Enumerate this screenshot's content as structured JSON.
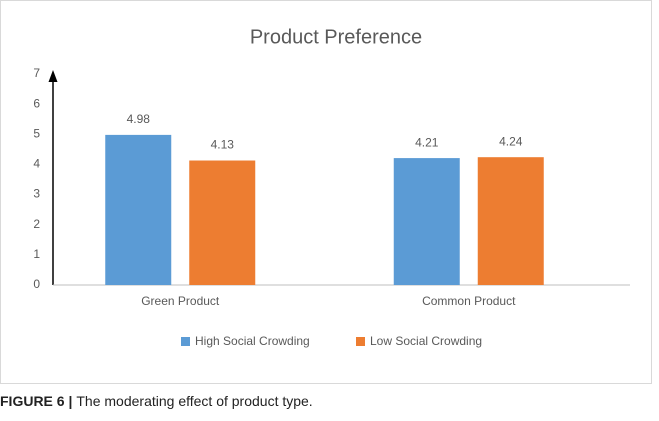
{
  "chart_data": {
    "type": "bar",
    "title": "Product Preference",
    "categories": [
      "Green Product",
      "Common Product"
    ],
    "series": [
      {
        "name": "High Social Crowding",
        "color": "#5b9bd5",
        "values": [
          4.98,
          4.21
        ]
      },
      {
        "name": "Low Social Crowding",
        "color": "#ed7d31",
        "values": [
          4.13,
          4.24
        ]
      }
    ],
    "ylim": [
      0,
      7
    ],
    "yticks": [
      0,
      1,
      2,
      3,
      4,
      5,
      6,
      7
    ],
    "grid": false,
    "legend": "bottom"
  },
  "caption": {
    "label": "FIGURE 6 |",
    "text": "The moderating effect of product type."
  }
}
